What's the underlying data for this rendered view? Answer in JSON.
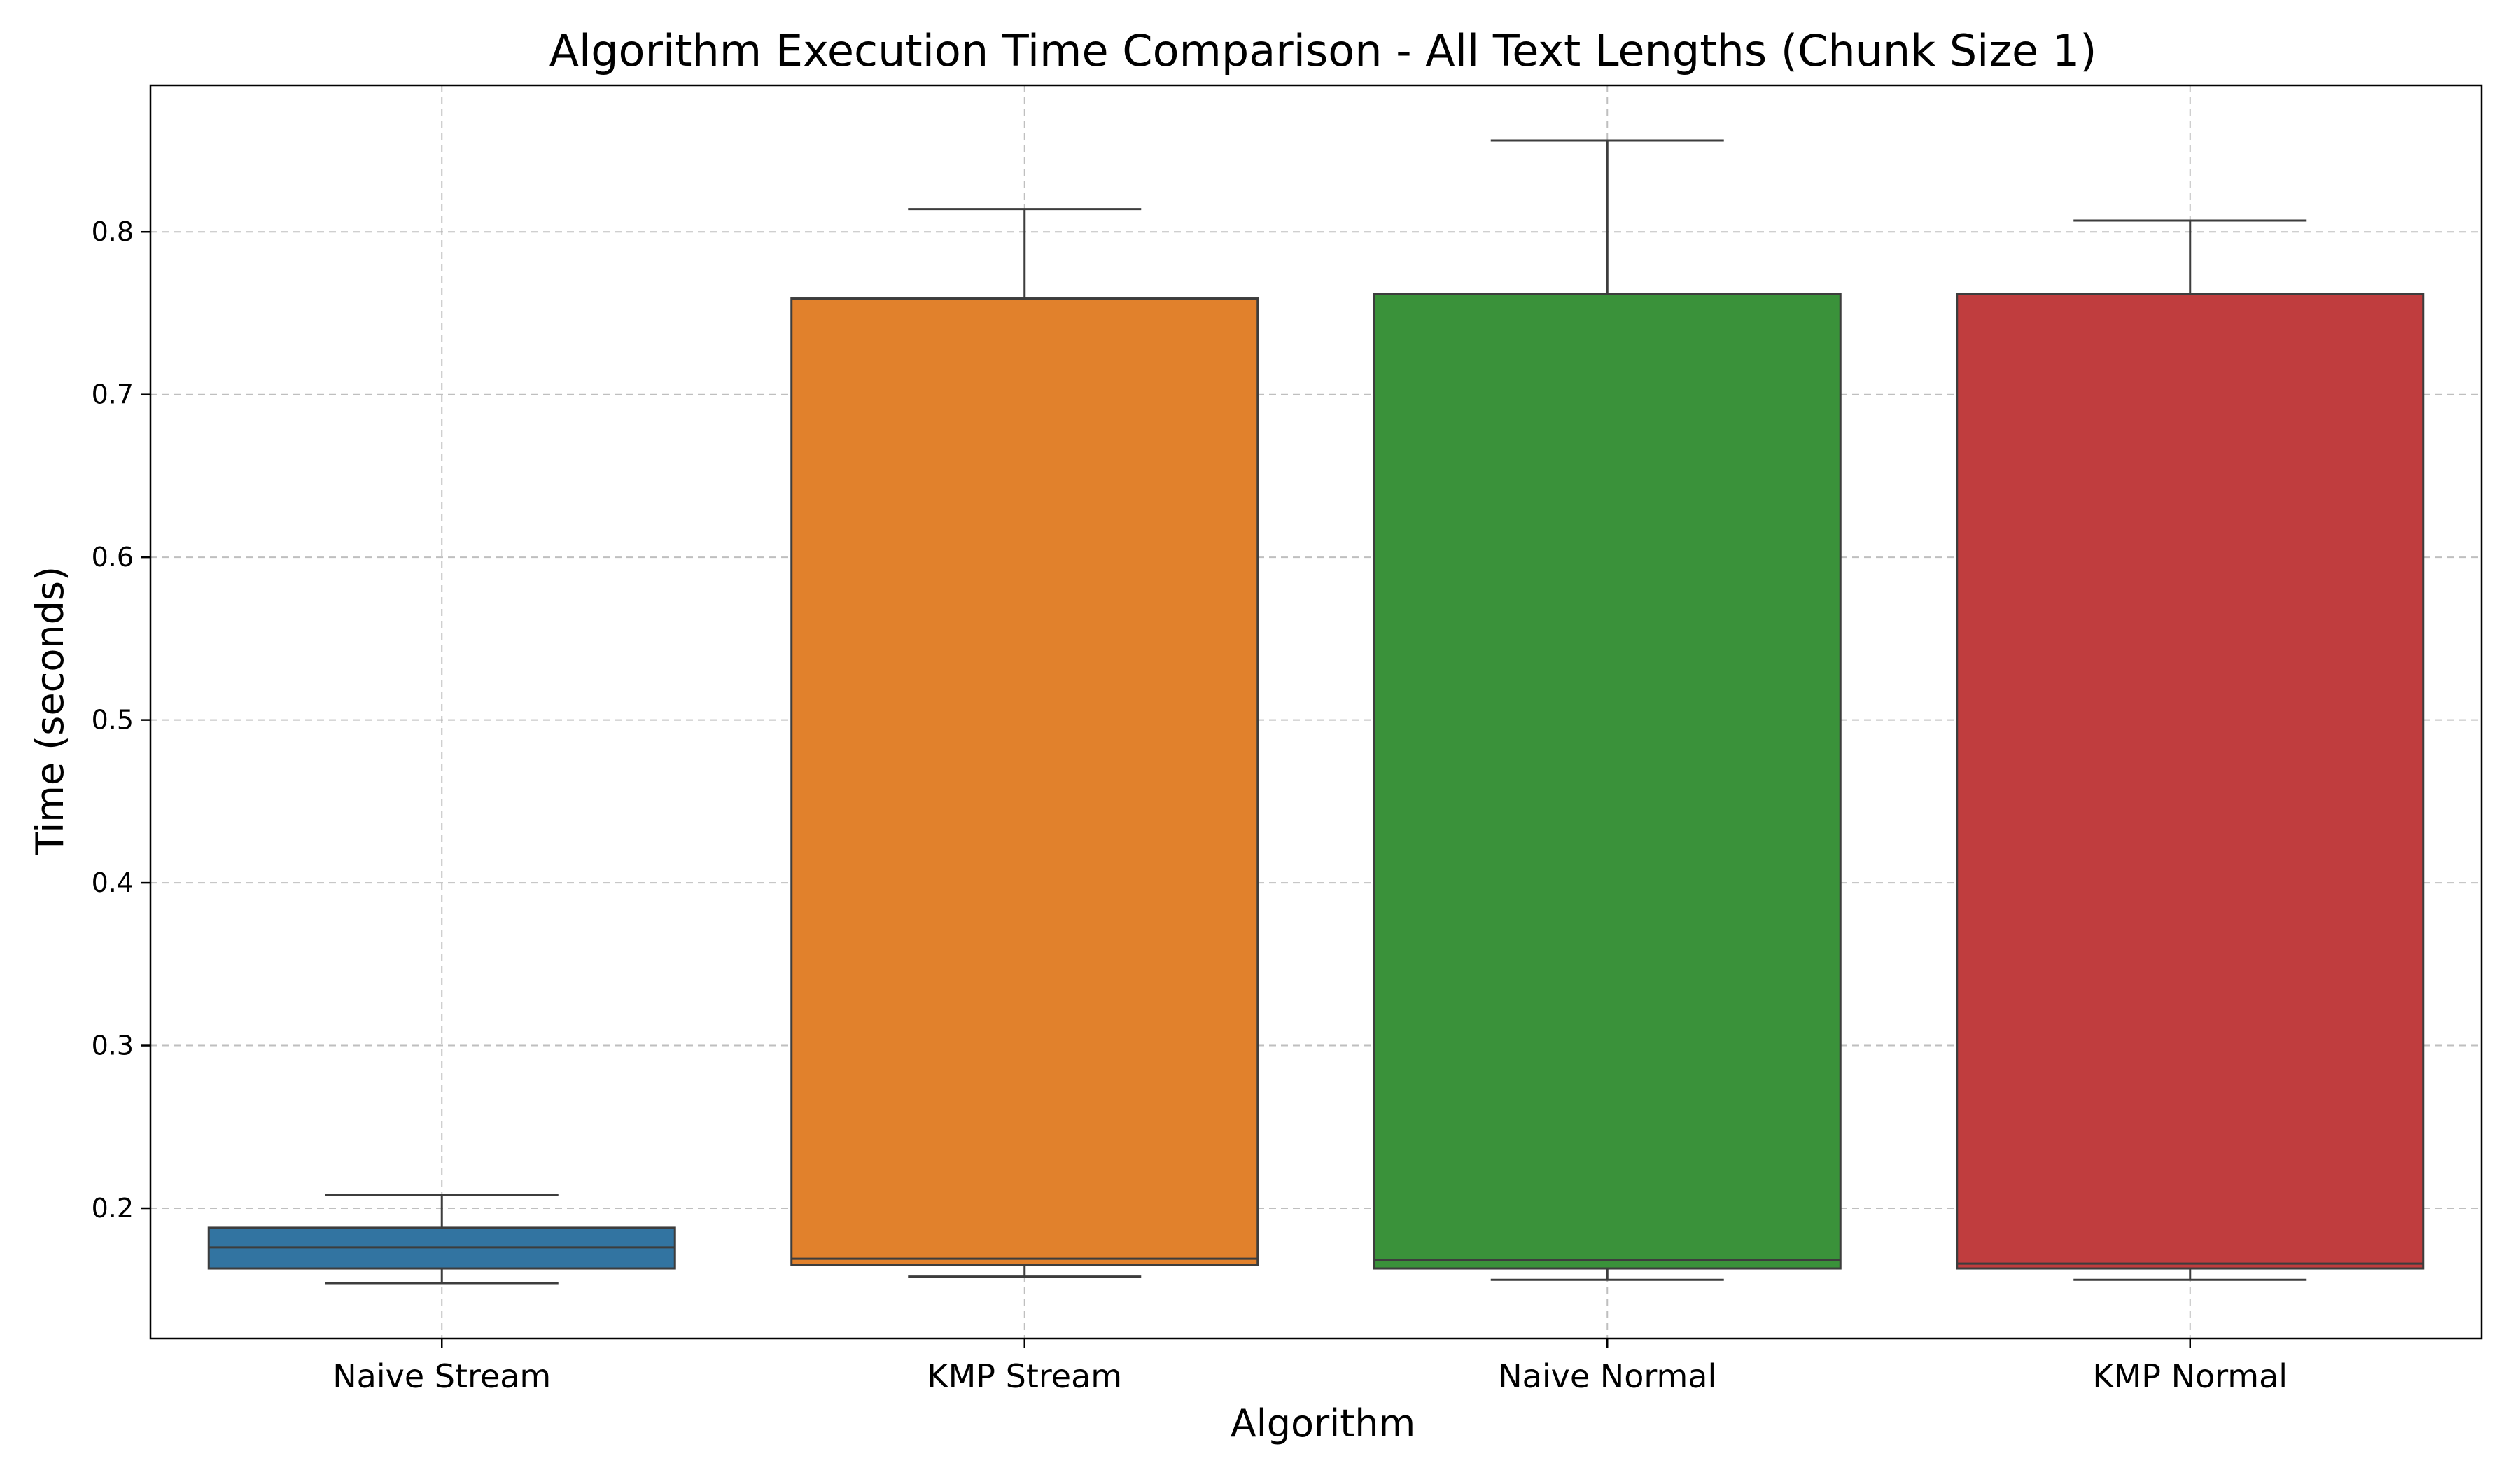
{
  "chart_data": {
    "type": "box",
    "title": "Algorithm Execution Time Comparison - All Text Lengths (Chunk Size 1)",
    "xlabel": "Algorithm",
    "ylabel": "Time (seconds)",
    "ylim": [
      0.12,
      0.89
    ],
    "yticks": [
      0.2,
      0.3,
      0.4,
      0.5,
      0.6,
      0.7,
      0.8
    ],
    "ytick_labels": [
      "0.2",
      "0.3",
      "0.4",
      "0.5",
      "0.6",
      "0.7",
      "0.8"
    ],
    "grid": true,
    "categories": [
      "Naive Stream",
      "KMP Stream",
      "Naive Normal",
      "KMP Normal"
    ],
    "boxes": [
      {
        "name": "Naive Stream",
        "whisker_low": 0.154,
        "q1": 0.163,
        "median": 0.176,
        "q3": 0.188,
        "whisker_high": 0.208,
        "color": "#3274a1"
      },
      {
        "name": "KMP Stream",
        "whisker_low": 0.158,
        "q1": 0.165,
        "median": 0.169,
        "q3": 0.759,
        "whisker_high": 0.814,
        "color": "#e1812c"
      },
      {
        "name": "Naive Normal",
        "whisker_low": 0.156,
        "q1": 0.163,
        "median": 0.168,
        "q3": 0.762,
        "whisker_high": 0.856,
        "color": "#3a923a"
      },
      {
        "name": "KMP Normal",
        "whisker_low": 0.156,
        "q1": 0.163,
        "median": 0.166,
        "q3": 0.762,
        "whisker_high": 0.807,
        "color": "#c03d3e"
      }
    ]
  }
}
